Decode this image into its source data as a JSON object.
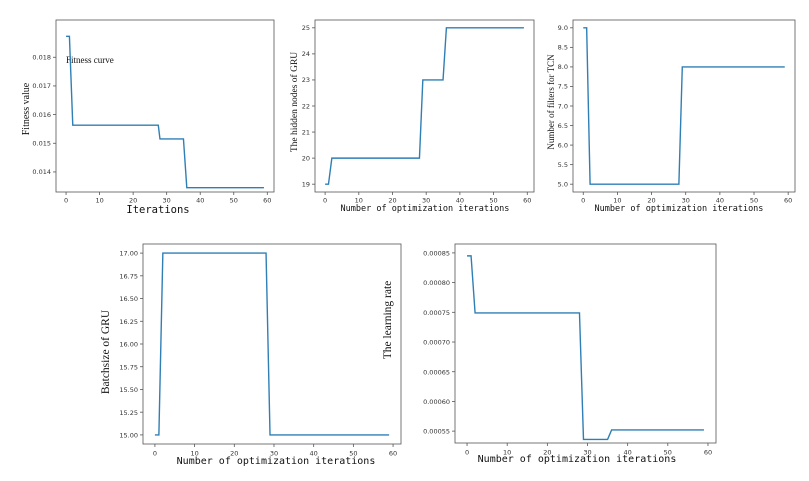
{
  "colors": {
    "line": "#2f7fb5",
    "frame": "#555555"
  },
  "chart_data": [
    {
      "id": "fitness",
      "type": "line",
      "title": "",
      "xlabel": "Iterations",
      "ylabel": "Fitness value",
      "annotation": "Fitness curve",
      "xlim": [
        -3,
        62
      ],
      "ylim": [
        0.0133,
        0.0193
      ],
      "xticks": [
        0,
        10,
        20,
        30,
        40,
        50,
        60
      ],
      "yticks": [
        0.014,
        0.015,
        0.016,
        0.017,
        0.018
      ],
      "ytick_labels": [
        "0.014",
        "0.015",
        "0.016",
        "0.017",
        "0.018"
      ],
      "series": [
        {
          "x": [
            0,
            1,
            2,
            27.5,
            28,
            32.5,
            33,
            33.5,
            34,
            35,
            36,
            59
          ],
          "y": [
            0.01873,
            0.01873,
            0.01563,
            0.01563,
            0.01515,
            0.01515,
            0.01515,
            0.01515,
            0.01515,
            0.01515,
            0.01345,
            0.01345
          ]
        }
      ]
    },
    {
      "id": "gru-hidden-nodes",
      "type": "line",
      "title": "",
      "xlabel": "Number of optimization iterations",
      "ylabel": "The hidden nodes of GRU",
      "xlim": [
        -3,
        62
      ],
      "ylim": [
        18.7,
        25.3
      ],
      "xticks": [
        0,
        10,
        20,
        30,
        40,
        50,
        60
      ],
      "yticks": [
        19,
        20,
        21,
        22,
        23,
        24,
        25
      ],
      "ytick_labels": [
        "19",
        "20",
        "21",
        "22",
        "23",
        "24",
        "25"
      ],
      "series": [
        {
          "x": [
            0,
            1,
            2,
            28,
            29,
            35,
            36,
            59
          ],
          "y": [
            19,
            19,
            20,
            20,
            23,
            23,
            25,
            25
          ]
        }
      ]
    },
    {
      "id": "tcn-filters",
      "type": "line",
      "title": "",
      "xlabel": "Number of optimization iterations",
      "ylabel": "Number of filters for  TCN",
      "xlim": [
        -3,
        62
      ],
      "ylim": [
        4.8,
        9.2
      ],
      "xticks": [
        0,
        10,
        20,
        30,
        40,
        50,
        60
      ],
      "yticks": [
        5.0,
        5.5,
        6.0,
        6.5,
        7.0,
        7.5,
        8.0,
        8.5,
        9.0
      ],
      "ytick_labels": [
        "5.0",
        "5.5",
        "6.0",
        "6.5",
        "7.0",
        "7.5",
        "8.0",
        "8.5",
        "9.0"
      ],
      "series": [
        {
          "x": [
            0,
            1,
            2,
            28,
            29,
            59
          ],
          "y": [
            9,
            9,
            5,
            5,
            8,
            8
          ]
        }
      ]
    },
    {
      "id": "gru-batchsize",
      "type": "line",
      "title": "",
      "xlabel": "Number of optimization iterations",
      "ylabel": "Batchsize of GRU",
      "xlim": [
        -3,
        62
      ],
      "ylim": [
        14.9,
        17.1
      ],
      "xticks": [
        0,
        10,
        20,
        30,
        40,
        50,
        60
      ],
      "yticks": [
        15.0,
        15.25,
        15.5,
        15.75,
        16.0,
        16.25,
        16.5,
        16.75,
        17.0
      ],
      "ytick_labels": [
        "15.00",
        "15.25",
        "15.50",
        "15.75",
        "16.00",
        "16.25",
        "16.50",
        "16.75",
        "17.00"
      ],
      "series": [
        {
          "x": [
            0,
            1,
            2,
            28,
            29,
            59
          ],
          "y": [
            15,
            15,
            17,
            17,
            15,
            15
          ]
        }
      ]
    },
    {
      "id": "learning-rate",
      "type": "line",
      "title": "",
      "xlabel": "Number of optimization iterations",
      "ylabel": "The learning rate",
      "xlim": [
        -3,
        62
      ],
      "ylim": [
        0.00053,
        0.000865
      ],
      "xticks": [
        0,
        10,
        20,
        30,
        40,
        50,
        60
      ],
      "yticks": [
        0.00055,
        0.0006,
        0.00065,
        0.0007,
        0.00075,
        0.0008,
        0.00085
      ],
      "ytick_labels": [
        "0.00055",
        "0.00060",
        "0.00065",
        "0.00070",
        "0.00075",
        "0.00080",
        "0.00085"
      ],
      "series": [
        {
          "x": [
            0,
            1,
            2,
            28,
            29,
            35,
            36,
            59
          ],
          "y": [
            0.000845,
            0.000845,
            0.000749,
            0.000749,
            0.000536,
            0.000536,
            0.000552,
            0.000552
          ]
        }
      ]
    }
  ]
}
